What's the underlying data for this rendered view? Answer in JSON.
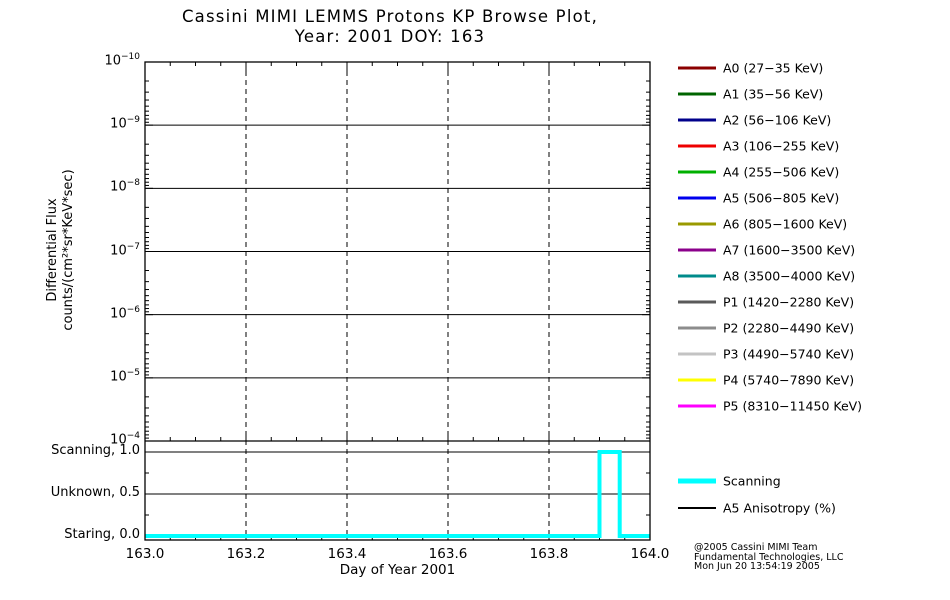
{
  "title": {
    "line1": "Cassini MIMI LEMMS Protons KP Browse Plot,",
    "line2": "Year: 2001 DOY: 163"
  },
  "credit": {
    "line1": "@2005 Cassini MIMI Team",
    "line2": "Fundamental Technologies, LLC",
    "line3": "Mon Jun 20 13:54:19 2005"
  },
  "chart_data": {
    "type": "line",
    "title": "Cassini MIMI LEMMS Protons KP Browse Plot, Year: 2001 DOY: 163",
    "xlabel": "Day of Year 2001",
    "x_range": [
      163.0,
      164.0
    ],
    "x_ticks": [
      "163.0",
      "163.2",
      "163.4",
      "163.6",
      "163.8",
      "164.0"
    ],
    "x_minor_step": 0.05,
    "grid": "on",
    "main_panel": {
      "ylabel_line1": "Differential Flux",
      "ylabel_line2": "counts/(cm²*sr*KeV*sec)",
      "y_scale": "log",
      "y_axis_inverted": true,
      "y_exponents": [
        -10,
        -9,
        -8,
        -7,
        -6,
        -5,
        -4
      ],
      "series": []
    },
    "state_panel": {
      "levels": [
        {
          "label": "Scanning, 1.0",
          "value": 1.0
        },
        {
          "label": "Unknown, 0.5",
          "value": 0.5
        },
        {
          "label": "Staring, 0.0",
          "value": 0.0
        }
      ],
      "scanning_line": {
        "name": "Scanning",
        "color": "#00FFFF",
        "points": [
          [
            163.0,
            0
          ],
          [
            163.9,
            0
          ],
          [
            163.9,
            1
          ],
          [
            163.94,
            1
          ],
          [
            163.94,
            0
          ],
          [
            164.0,
            0
          ]
        ]
      }
    },
    "legend_position": "right",
    "legend": [
      {
        "id": "A0",
        "label": "A0 (27−35 KeV)",
        "color": "#8B0000"
      },
      {
        "id": "A1",
        "label": "A1 (35−56 KeV)",
        "color": "#006400"
      },
      {
        "id": "A2",
        "label": "A2 (56−106 KeV)",
        "color": "#00008B"
      },
      {
        "id": "A3",
        "label": "A3 (106−255 KeV)",
        "color": "#EE0000"
      },
      {
        "id": "A4",
        "label": "A4 (255−506 KeV)",
        "color": "#00B000"
      },
      {
        "id": "A5",
        "label": "A5 (506−805 KeV)",
        "color": "#0000EE"
      },
      {
        "id": "A6",
        "label": "A6 (805−1600 KeV)",
        "color": "#999900"
      },
      {
        "id": "A7",
        "label": "A7 (1600−3500 KeV)",
        "color": "#8B008B"
      },
      {
        "id": "A8",
        "label": "A8 (3500−4000 KeV)",
        "color": "#008B8B"
      },
      {
        "id": "P1",
        "label": "P1 (1420−2280 KeV)",
        "color": "#5A5A5A"
      },
      {
        "id": "P2",
        "label": "P2 (2280−4490 KeV)",
        "color": "#8C8C8C"
      },
      {
        "id": "P3",
        "label": "P3 (4490−5740 KeV)",
        "color": "#C3C3C3"
      },
      {
        "id": "P4",
        "label": "P4 (5740−7890 KeV)",
        "color": "#FFFF00"
      },
      {
        "id": "P5",
        "label": "P5 (8310−11450 KeV)",
        "color": "#FF00FF"
      }
    ],
    "legend2": [
      {
        "id": "scanning",
        "label": "Scanning",
        "color": "#00FFFF",
        "thick": true
      },
      {
        "id": "a5-anisotropy",
        "label": "A5 Anisotropy (%)",
        "color": "#000000",
        "thick": false
      }
    ]
  }
}
